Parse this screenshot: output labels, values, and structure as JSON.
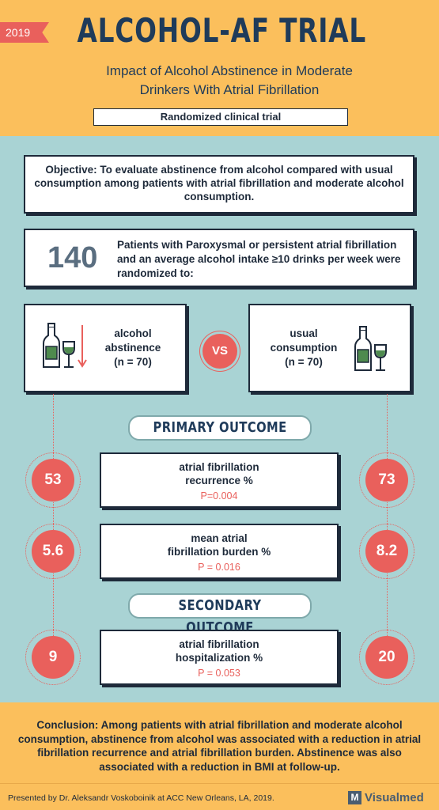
{
  "header": {
    "year": "2019",
    "title": "ALCOHOL-AF TRIAL",
    "subtitle_line1": "Impact of Alcohol Abstinence in Moderate",
    "subtitle_line2": "Drinkers With Atrial Fibrillation",
    "design": "Randomized clinical trial"
  },
  "objective": "Objective: To evaluate abstinence from alcohol compared with usual consumption among patients with atrial fibrillation and moderate alcohol consumption.",
  "patients": {
    "count": "140",
    "text": "Patients with Paroxysmal or persistent atrial fibrillation and an average alcohol intake ≥10 drinks per week were randomized to:"
  },
  "arms": {
    "left_line1": "alcohol",
    "left_line2": "abstinence",
    "left_n": "(n = 70)",
    "right_line1": "usual",
    "right_line2": "consumption",
    "right_n": "(n = 70)",
    "vs": "VS"
  },
  "primary_outcome_label": "PRIMARY OUTCOME",
  "secondary_outcome_label": "SECONDARY OUTCOME",
  "outcomes": [
    {
      "line1": "atrial fibrillation",
      "line2": "recurrence %",
      "p": "P=0.004",
      "abstinence": "53",
      "usual": "73"
    },
    {
      "line1": "mean atrial",
      "line2": "fibrillation burden %",
      "p": "P = 0.016",
      "abstinence": "5.6",
      "usual": "8.2"
    },
    {
      "line1": "atrial fibrillation",
      "line2": "hospitalization %",
      "p": "P = 0.053",
      "abstinence": "9",
      "usual": "20"
    }
  ],
  "conclusion": "Conclusion: Among patients with atrial fibrillation and moderate alcohol consumption, abstinence from alcohol was associated with a reduction in atrial fibrillation recurrence and atrial fibrillation burden. Abstinence was also associated with a reduction in BMI at follow-up.",
  "footer": {
    "credit": "Presented by Dr. Aleksandr Voskoboinik at ACC New Orleans, LA, 2019.",
    "brand_mark": "M",
    "brand_name": "Visualmed"
  },
  "colors": {
    "accent": "#e9605c",
    "background": "#fbbf5c",
    "panel": "#a9d3d4",
    "navy": "#1f3b5a",
    "bottle_green": "#4e8a4e"
  },
  "icons": {
    "left": [
      "wine-bottle-icon",
      "wine-glass-icon",
      "down-arrow-icon"
    ],
    "right": [
      "wine-bottle-icon",
      "wine-glass-icon"
    ]
  }
}
